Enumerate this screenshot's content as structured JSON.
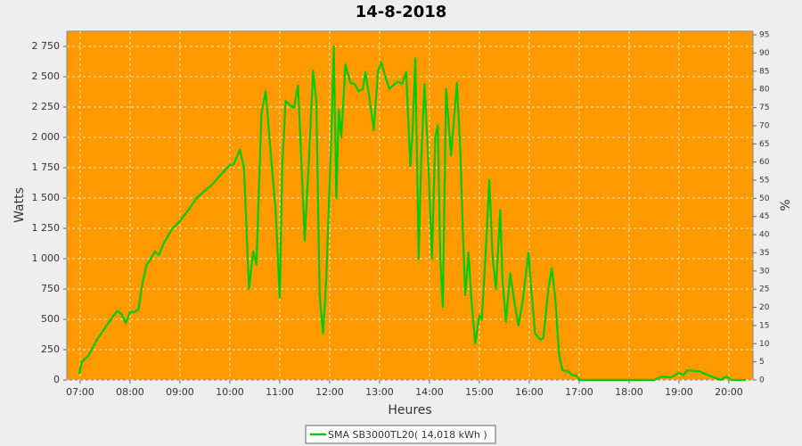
{
  "chart_data": {
    "type": "line",
    "title": "14-8-2018",
    "x_label": "Heures",
    "y_label": "Watts",
    "y2_label": "%",
    "xlim": [
      "06:44",
      "20:29"
    ],
    "xticks": [
      "07:00",
      "08:00",
      "09:00",
      "10:00",
      "11:00",
      "12:00",
      "13:00",
      "14:00",
      "15:00",
      "16:00",
      "17:00",
      "18:00",
      "19:00",
      "20:00"
    ],
    "ylim": [
      0,
      2875
    ],
    "yticks": [
      0,
      250,
      500,
      750,
      {
        "value": 1000,
        "label": "1 000"
      },
      {
        "value": 1250,
        "label": "1 250"
      },
      {
        "value": 1500,
        "label": "1 500"
      },
      {
        "value": 1750,
        "label": "1 750"
      },
      {
        "value": 2000,
        "label": "2 000"
      },
      {
        "value": 2250,
        "label": "2 250"
      },
      {
        "value": 2500,
        "label": "2 500"
      },
      {
        "value": 2750,
        "label": "2 750"
      }
    ],
    "y2lim": [
      0,
      96
    ],
    "y2ticks": [
      0,
      5,
      10,
      15,
      20,
      25,
      30,
      35,
      40,
      45,
      50,
      55,
      60,
      65,
      70,
      75,
      80,
      85,
      90,
      95
    ],
    "grid": true,
    "background": "#ff9900",
    "x": [
      "06:59",
      "07:02",
      "07:10",
      "07:20",
      "07:30",
      "07:40",
      "07:45",
      "07:50",
      "07:55",
      "08:00",
      "08:05",
      "08:10",
      "08:15",
      "08:20",
      "08:25",
      "08:30",
      "08:35",
      "08:40",
      "08:50",
      "09:00",
      "09:10",
      "09:20",
      "09:30",
      "09:40",
      "09:50",
      "10:00",
      "10:05",
      "10:12",
      "10:17",
      "10:23",
      "10:28",
      "10:32",
      "10:38",
      "10:43",
      "10:50",
      "10:55",
      "11:00",
      "11:03",
      "11:07",
      "11:10",
      "11:14",
      "11:17",
      "11:22",
      "11:27",
      "11:30",
      "11:35",
      "11:40",
      "11:44",
      "11:48",
      "11:52",
      "11:56",
      "12:02",
      "12:05",
      "12:08",
      "12:11",
      "12:14",
      "12:19",
      "12:25",
      "12:30",
      "12:35",
      "12:40",
      "12:43",
      "12:48",
      "12:53",
      "12:58",
      "13:02",
      "13:07",
      "13:12",
      "13:18",
      "13:22",
      "13:27",
      "13:32",
      "13:37",
      "13:40",
      "13:43",
      "13:47",
      "13:50",
      "13:54",
      "13:58",
      "14:03",
      "14:07",
      "14:10",
      "14:13",
      "14:16",
      "14:20",
      "14:26",
      "14:33",
      "14:37",
      "14:40",
      "14:43",
      "14:47",
      "14:50",
      "14:55",
      "15:00",
      "15:03",
      "15:08",
      "15:12",
      "15:16",
      "15:20",
      "15:25",
      "15:28",
      "15:32",
      "15:37",
      "15:42",
      "15:47",
      "15:52",
      "15:59",
      "16:03",
      "16:07",
      "16:14",
      "16:17",
      "16:23",
      "16:27",
      "16:31",
      "16:36",
      "16:40",
      "16:47",
      "16:52",
      "16:56",
      "17:01",
      "17:30",
      "18:00",
      "18:30",
      "18:40",
      "18:50",
      "19:00",
      "19:05",
      "19:10",
      "19:25",
      "19:35",
      "19:50",
      "19:57",
      "20:03",
      "20:20"
    ],
    "series": [
      {
        "name": "SMA SB3000TL20( 14,018 kWh )",
        "color": "#00cc00",
        "values": [
          50,
          150,
          200,
          330,
          430,
          530,
          570,
          540,
          470,
          560,
          560,
          580,
          800,
          950,
          1000,
          1060,
          1030,
          1120,
          1240,
          1310,
          1400,
          1500,
          1560,
          1620,
          1700,
          1770,
          1780,
          1900,
          1750,
          750,
          1060,
          950,
          2200,
          2380,
          1800,
          1400,
          680,
          1750,
          2300,
          2280,
          2260,
          2240,
          2430,
          1650,
          1150,
          1800,
          2550,
          2300,
          700,
          380,
          850,
          2000,
          2750,
          1500,
          2230,
          2000,
          2600,
          2450,
          2440,
          2380,
          2400,
          2540,
          2320,
          2060,
          2540,
          2620,
          2500,
          2400,
          2440,
          2460,
          2440,
          2540,
          1760,
          2100,
          2650,
          1000,
          1800,
          2440,
          1900,
          1000,
          2000,
          2100,
          1000,
          600,
          2400,
          1850,
          2450,
          1900,
          1250,
          700,
          1050,
          700,
          300,
          530,
          500,
          1100,
          1650,
          1000,
          750,
          1400,
          800,
          480,
          880,
          650,
          450,
          650,
          1050,
          700,
          380,
          330,
          350,
          750,
          920,
          700,
          200,
          80,
          70,
          40,
          40,
          0,
          0,
          0,
          0,
          30,
          20,
          60,
          40,
          80,
          70,
          40,
          0,
          30,
          0,
          0
        ]
      }
    ]
  }
}
